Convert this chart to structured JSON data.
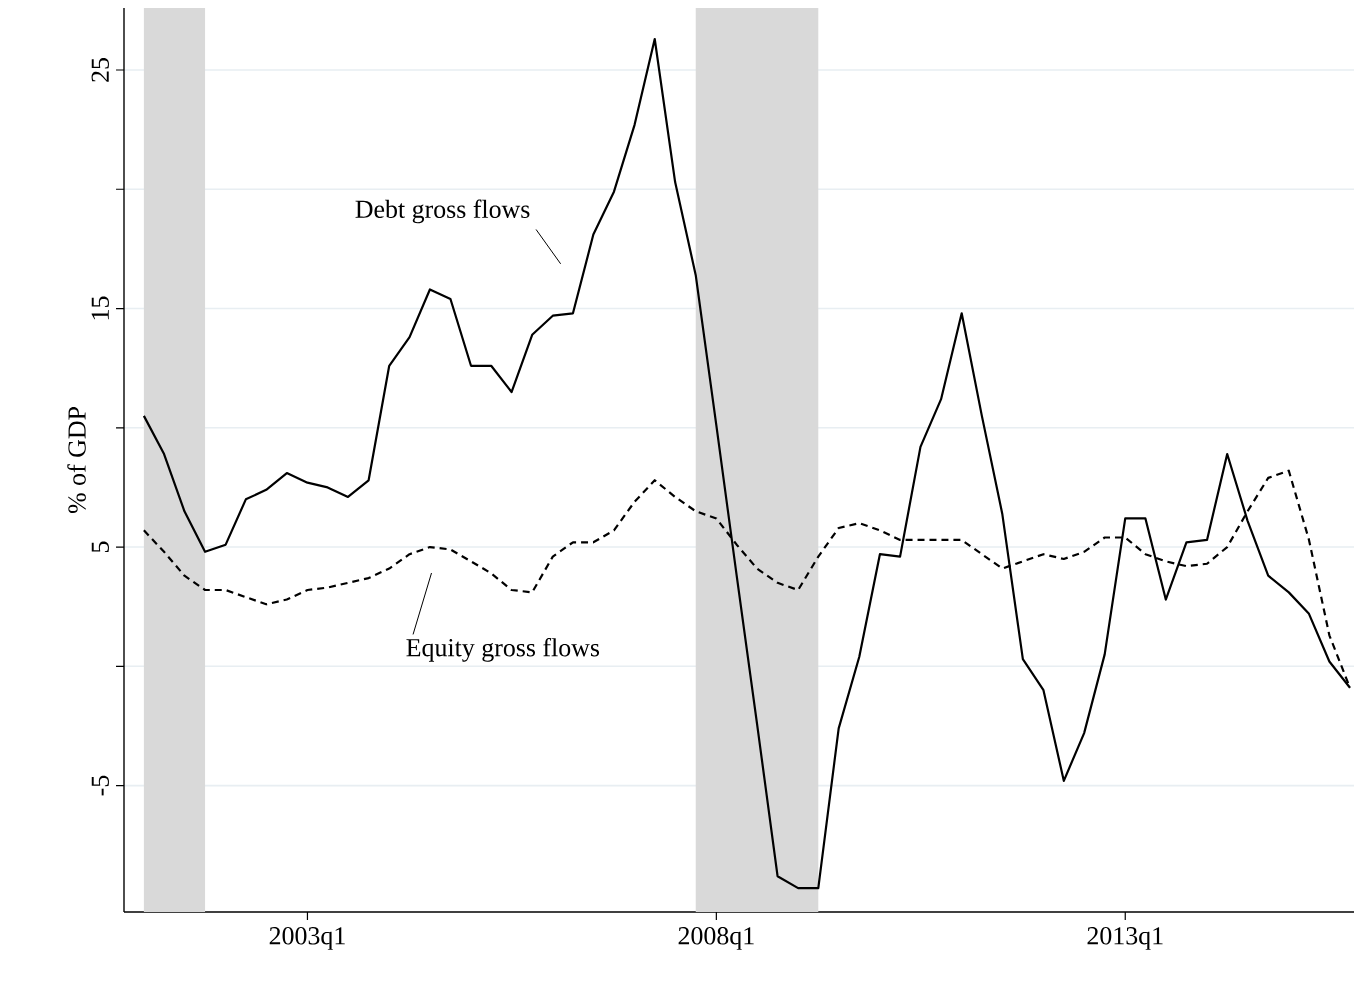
{
  "chart_data": {
    "type": "line",
    "ylabel": "% of GDP",
    "x": [
      "2001-01",
      "2001-04",
      "2001-07",
      "2001-10",
      "2002-01",
      "2002-04",
      "2002-07",
      "2002-10",
      "2003-01",
      "2003-04",
      "2003-07",
      "2003-10",
      "2004-01",
      "2004-04",
      "2004-07",
      "2004-10",
      "2005-01",
      "2005-04",
      "2005-07",
      "2005-10",
      "2006-01",
      "2006-04",
      "2006-07",
      "2006-10",
      "2007-01",
      "2007-04",
      "2007-07",
      "2007-10",
      "2008-01",
      "2008-04",
      "2008-07",
      "2008-10",
      "2009-01",
      "2009-04",
      "2009-07",
      "2009-10",
      "2010-01",
      "2010-04",
      "2010-07",
      "2010-10",
      "2011-01",
      "2011-04",
      "2011-07",
      "2011-10",
      "2012-01",
      "2012-04",
      "2012-07",
      "2012-10",
      "2013-01",
      "2013-04",
      "2013-07",
      "2013-10",
      "2014-01",
      "2014-04",
      "2014-07",
      "2014-10",
      "2015-01",
      "2015-04",
      "2015-07",
      "2015-10"
    ],
    "series": [
      {
        "color": "#000000",
        "line_style": "solid",
        "values": [
          10.5,
          8.9,
          6.5,
          4.8,
          5.1,
          7.0,
          7.4,
          8.1,
          7.7,
          7.5,
          7.1,
          7.8,
          12.6,
          13.8,
          15.8,
          15.4,
          12.6,
          12.6,
          11.5,
          13.9,
          14.7,
          14.8,
          18.1,
          19.9,
          22.7,
          26.3,
          20.3,
          16.4,
          10.1,
          3.8,
          -2.4,
          -8.8,
          -9.3,
          -9.3,
          -2.6,
          0.4,
          4.7,
          4.6,
          9.2,
          11.2,
          14.8,
          10.5,
          6.4,
          0.3,
          -1.0,
          -4.8,
          -2.8,
          0.5,
          6.2,
          6.2,
          2.8,
          5.2,
          5.3,
          8.9,
          6.1,
          3.8,
          3.1,
          2.2,
          0.2,
          -0.9
        ]
      },
      {
        "color": "#000000",
        "line_style": "dashed",
        "values": [
          5.7,
          4.8,
          3.8,
          3.2,
          3.2,
          2.9,
          2.6,
          2.8,
          3.2,
          3.3,
          3.5,
          3.7,
          4.1,
          4.7,
          5.0,
          4.9,
          4.4,
          3.9,
          3.2,
          3.1,
          4.6,
          5.2,
          5.2,
          5.7,
          6.9,
          7.8,
          7.1,
          6.5,
          6.2,
          5.1,
          4.1,
          3.5,
          3.2,
          4.6,
          5.8,
          6.0,
          5.7,
          5.3,
          5.3,
          5.3,
          5.3,
          4.7,
          4.1,
          4.4,
          4.7,
          4.5,
          4.8,
          5.4,
          5.4,
          4.7,
          4.4,
          4.2,
          4.3,
          5.0,
          6.5,
          7.9,
          8.2,
          5.3,
          1.3,
          -0.9
        ]
      }
    ],
    "xlim": [
      "2000-10-04",
      "2015-10-19"
    ],
    "ylim": [
      -10.3,
      27.6
    ],
    "xticks": [
      {
        "value": "2003-01",
        "label": "2003q1"
      },
      {
        "value": "2008-01",
        "label": "2008q1"
      },
      {
        "value": "2013-01",
        "label": "2013q1"
      }
    ],
    "yticks": [
      {
        "value": -5,
        "label": "-5"
      },
      {
        "value": 0,
        "label": null
      },
      {
        "value": 5,
        "label": "5"
      },
      {
        "value": 10,
        "label": null
      },
      {
        "value": 15,
        "label": "15"
      },
      {
        "value": 20,
        "label": null
      },
      {
        "value": 25,
        "label": "25"
      }
    ],
    "grid": "y",
    "bands": [
      {
        "axis": "x",
        "from": "2001-01",
        "to": "2001-10",
        "color": "#d9d9d9"
      },
      {
        "axis": "x",
        "from": "2007-10",
        "to": "2009-04",
        "color": "#d9d9d9"
      }
    ],
    "annotations": [
      "Debt gross flows",
      "Equity gross flows"
    ]
  }
}
